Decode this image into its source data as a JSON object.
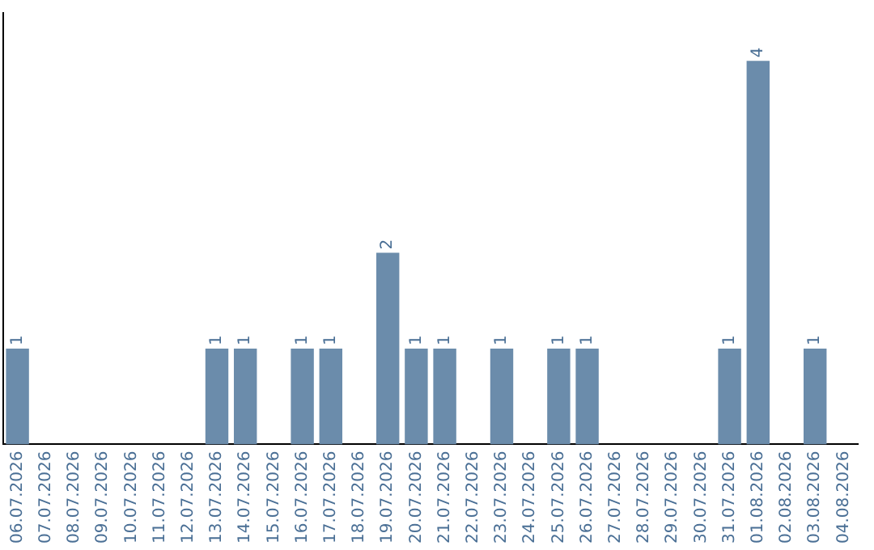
{
  "chart_data": {
    "type": "bar",
    "categories": [
      "06.07.2026",
      "07.07.2026",
      "08.07.2026",
      "09.07.2026",
      "10.07.2026",
      "11.07.2026",
      "12.07.2026",
      "13.07.2026",
      "14.07.2026",
      "15.07.2026",
      "16.07.2026",
      "17.07.2026",
      "18.07.2026",
      "19.07.2026",
      "20.07.2026",
      "21.07.2026",
      "22.07.2026",
      "23.07.2026",
      "24.07.2026",
      "25.07.2026",
      "26.07.2026",
      "27.07.2026",
      "28.07.2026",
      "29.07.2026",
      "30.07.2026",
      "31.07.2026",
      "01.08.2026",
      "02.08.2026",
      "03.08.2026",
      "04.08.2026"
    ],
    "values": [
      1,
      0,
      0,
      0,
      0,
      0,
      0,
      1,
      1,
      0,
      1,
      1,
      0,
      2,
      1,
      1,
      0,
      1,
      0,
      1,
      1,
      0,
      0,
      0,
      0,
      1,
      4,
      0,
      1,
      0
    ],
    "value_labels": [
      "1",
      null,
      null,
      null,
      null,
      null,
      null,
      "1",
      "1",
      null,
      "1",
      "1",
      null,
      "2",
      "1",
      "1",
      null,
      "1",
      null,
      "1",
      "1",
      null,
      null,
      null,
      null,
      "1",
      "4",
      null,
      "1",
      null
    ],
    "color": "#6b8cab",
    "grid": false,
    "legend": false,
    "tick_labels": "x"
  }
}
